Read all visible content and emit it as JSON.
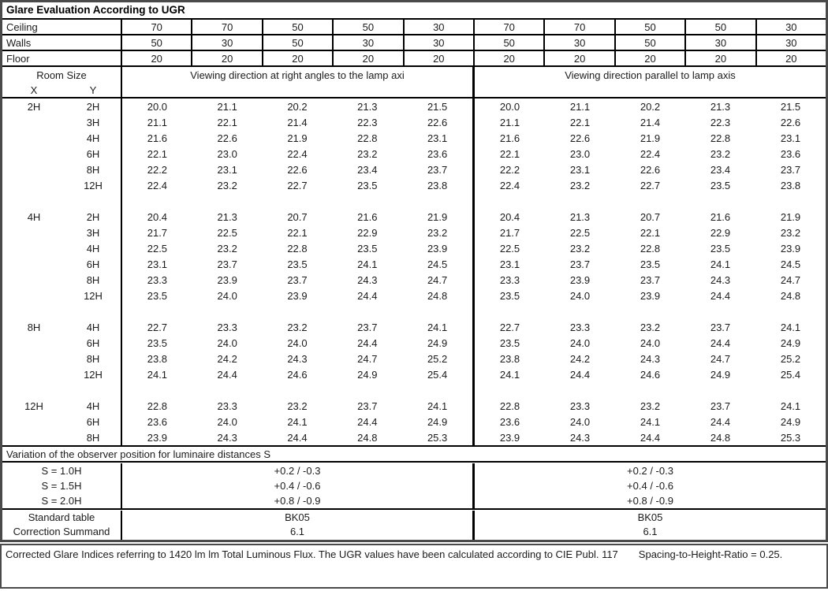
{
  "title": "Glare Evaluation According to UGR",
  "surface_rows": [
    {
      "label": "Ceiling",
      "values": [
        "70",
        "70",
        "50",
        "50",
        "30",
        "70",
        "70",
        "50",
        "50",
        "30"
      ]
    },
    {
      "label": "Walls",
      "values": [
        "50",
        "30",
        "50",
        "30",
        "30",
        "50",
        "30",
        "50",
        "30",
        "30"
      ]
    },
    {
      "label": "Floor",
      "values": [
        "20",
        "20",
        "20",
        "20",
        "20",
        "20",
        "20",
        "20",
        "20",
        "20"
      ]
    }
  ],
  "header": {
    "room_size": "Room Size",
    "x_label": "X",
    "y_label": "Y",
    "left_heading": "Viewing direction at right angles to the lamp axi",
    "right_heading": "Viewing direction parallel to lamp axis"
  },
  "ugr_blocks": [
    {
      "x": "2H",
      "rows": [
        {
          "y": "2H",
          "values": [
            "20.0",
            "21.1",
            "20.2",
            "21.3",
            "21.5"
          ]
        },
        {
          "y": "3H",
          "values": [
            "21.1",
            "22.1",
            "21.4",
            "22.3",
            "22.6"
          ]
        },
        {
          "y": "4H",
          "values": [
            "21.6",
            "22.6",
            "21.9",
            "22.8",
            "23.1"
          ]
        },
        {
          "y": "6H",
          "values": [
            "22.1",
            "23.0",
            "22.4",
            "23.2",
            "23.6"
          ]
        },
        {
          "y": "8H",
          "values": [
            "22.2",
            "23.1",
            "22.6",
            "23.4",
            "23.7"
          ]
        },
        {
          "y": "12H",
          "values": [
            "22.4",
            "23.2",
            "22.7",
            "23.5",
            "23.8"
          ]
        }
      ]
    },
    {
      "x": "4H",
      "rows": [
        {
          "y": "2H",
          "values": [
            "20.4",
            "21.3",
            "20.7",
            "21.6",
            "21.9"
          ]
        },
        {
          "y": "3H",
          "values": [
            "21.7",
            "22.5",
            "22.1",
            "22.9",
            "23.2"
          ]
        },
        {
          "y": "4H",
          "values": [
            "22.5",
            "23.2",
            "22.8",
            "23.5",
            "23.9"
          ]
        },
        {
          "y": "6H",
          "values": [
            "23.1",
            "23.7",
            "23.5",
            "24.1",
            "24.5"
          ]
        },
        {
          "y": "8H",
          "values": [
            "23.3",
            "23.9",
            "23.7",
            "24.3",
            "24.7"
          ]
        },
        {
          "y": "12H",
          "values": [
            "23.5",
            "24.0",
            "23.9",
            "24.4",
            "24.8"
          ]
        }
      ]
    },
    {
      "x": "8H",
      "rows": [
        {
          "y": "4H",
          "values": [
            "22.7",
            "23.3",
            "23.2",
            "23.7",
            "24.1"
          ]
        },
        {
          "y": "6H",
          "values": [
            "23.5",
            "24.0",
            "24.0",
            "24.4",
            "24.9"
          ]
        },
        {
          "y": "8H",
          "values": [
            "23.8",
            "24.2",
            "24.3",
            "24.7",
            "25.2"
          ]
        },
        {
          "y": "12H",
          "values": [
            "24.1",
            "24.4",
            "24.6",
            "24.9",
            "25.4"
          ]
        }
      ]
    },
    {
      "x": "12H",
      "rows": [
        {
          "y": "4H",
          "values": [
            "22.8",
            "23.3",
            "23.2",
            "23.7",
            "24.1"
          ]
        },
        {
          "y": "6H",
          "values": [
            "23.6",
            "24.0",
            "24.1",
            "24.4",
            "24.9"
          ]
        },
        {
          "y": "8H",
          "values": [
            "23.9",
            "24.3",
            "24.4",
            "24.8",
            "25.3"
          ]
        }
      ]
    }
  ],
  "variation_heading": "Variation of the observer position for luminaire distances S",
  "variation_rows": [
    {
      "label": "S = 1.0H",
      "value": "+0.2 / -0.3"
    },
    {
      "label": "S = 1.5H",
      "value": "+0.4 / -0.6"
    },
    {
      "label": "S = 2.0H",
      "value": "+0.8 / -0.9"
    }
  ],
  "summary_rows": [
    {
      "label": "Standard table",
      "value": "BK05"
    },
    {
      "label": "Correction Summand",
      "value": "6.1"
    }
  ],
  "footnote": {
    "main": "Corrected Glare Indices referring to 1420 lm lm Total Luminous Flux. The UGR values have been calculated according to CIE Publ. 117",
    "ratio": "Spacing-to-Height-Ratio = 0.25."
  }
}
